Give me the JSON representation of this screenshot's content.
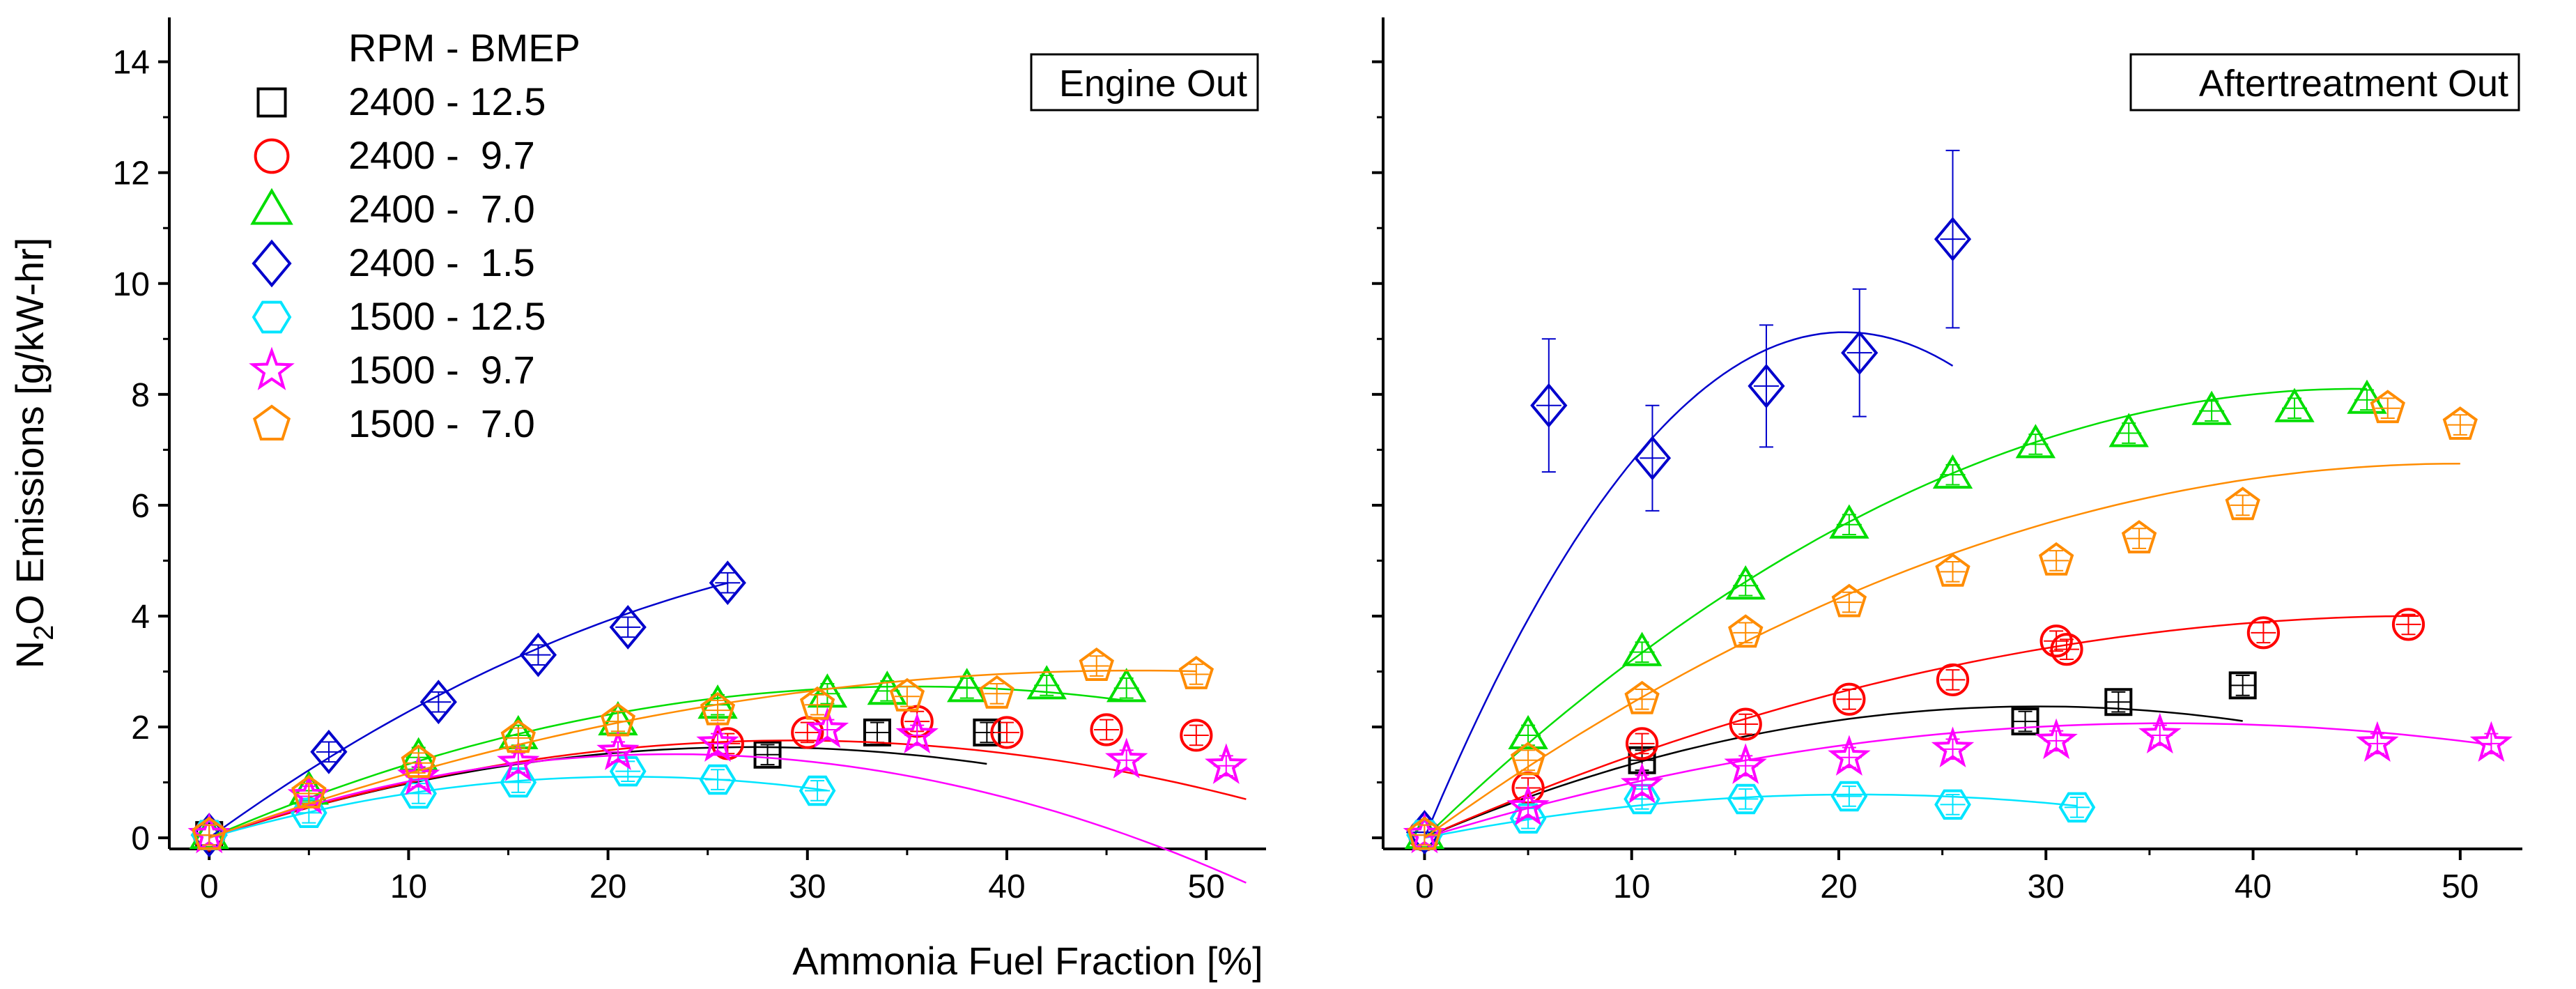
{
  "chart_data": {
    "type": "scatter",
    "y_axis_title": "N2O Emissions [g/kW-hr]",
    "y_axis_title_parts": {
      "before": "N",
      "subscript": "2",
      "after": "O Emissions [g/kW-hr]"
    },
    "x_axis_title": "Ammonia Fuel Fraction [%]",
    "xlim": [
      -2,
      53
    ],
    "ylim": [
      -0.2,
      14.8
    ],
    "x_ticks": [
      0,
      10,
      20,
      30,
      40,
      50
    ],
    "y_ticks": [
      0,
      2,
      4,
      6,
      8,
      10,
      12,
      14
    ],
    "x_tick_labels": [
      "0",
      "10",
      "20",
      "30",
      "40",
      "50"
    ],
    "y_tick_labels": [
      "0",
      "2",
      "4",
      "6",
      "8",
      "10",
      "12",
      "14"
    ],
    "legend_title": "RPM - BMEP",
    "legend_placement": "top-left",
    "series": [
      {
        "name": "2400 - 12.5",
        "color": "#000000",
        "marker": "square"
      },
      {
        "name": "2400 -  9.7",
        "color": "#ff0000",
        "marker": "circle"
      },
      {
        "name": "2400 -  7.0",
        "color": "#00dd00",
        "marker": "triangle"
      },
      {
        "name": "2400 -  1.5",
        "color": "#0000cc",
        "marker": "diamond"
      },
      {
        "name": "1500 - 12.5",
        "color": "#00e5ff",
        "marker": "hexagon"
      },
      {
        "name": "1500 -  9.7",
        "color": "#ff00ff",
        "marker": "star"
      },
      {
        "name": "1500 -  7.0",
        "color": "#ff8c00",
        "marker": "pentagon"
      }
    ],
    "panels": [
      {
        "title": "Engine Out",
        "data": [
          {
            "x": [
              0,
              28,
              33.5,
              39
            ],
            "y": [
              0.05,
              1.5,
              1.9,
              1.9
            ],
            "fit": {
              "coef": [
                0,
                0.12,
                -0.0022
              ],
              "xmax": 39
            }
          },
          {
            "x": [
              0,
              26,
              30,
              35.5,
              40,
              45,
              49.5
            ],
            "y": [
              0.05,
              1.7,
              1.9,
              2.1,
              1.9,
              1.95,
              1.85
            ],
            "fit": {
              "coef": [
                0,
                0.12,
                -0.00205
              ],
              "xmax": 52
            }
          },
          {
            "x": [
              0,
              5,
              10.5,
              15.5,
              20.5,
              25.5,
              31,
              34,
              38,
              42,
              46
            ],
            "y": [
              0.05,
              0.85,
              1.45,
              1.85,
              2.1,
              2.4,
              2.6,
              2.65,
              2.7,
              2.75,
              2.7
            ],
            "fit": {
              "coef": [
                0,
                0.155,
                -0.0022
              ],
              "xmax": 46
            }
          },
          {
            "x": [
              0,
              6,
              11.5,
              16.5,
              21,
              26
            ],
            "y": [
              0.05,
              1.55,
              2.45,
              3.3,
              3.8,
              4.6
            ],
            "fit": {
              "coef": [
                0,
                0.26,
                -0.0032
              ],
              "xmax": 26
            }
          },
          {
            "x": [
              0,
              5,
              10.5,
              15.5,
              21,
              25.5,
              30.5
            ],
            "y": [
              0.05,
              0.45,
              0.8,
              1.0,
              1.2,
              1.05,
              0.85
            ],
            "fit": {
              "coef": [
                0,
                0.105,
                -0.0025
              ],
              "xmax": 31
            }
          },
          {
            "x": [
              0,
              5,
              10.5,
              15.5,
              20.5,
              25.5,
              31,
              35.5,
              46,
              51
            ],
            "y": [
              0.05,
              0.75,
              1.1,
              1.35,
              1.55,
              1.7,
              1.95,
              1.85,
              1.4,
              1.3
            ],
            "fit": {
              "coef": [
                0,
                0.13,
                -0.0028
              ],
              "xmax": 52
            }
          },
          {
            "x": [
              0,
              5,
              10.5,
              15.5,
              20.5,
              25.5,
              30.5,
              35,
              39.5,
              44.5,
              49.5
            ],
            "y": [
              0.05,
              0.8,
              1.35,
              1.8,
              2.1,
              2.3,
              2.4,
              2.55,
              2.6,
              3.1,
              2.95
            ],
            "fit": {
              "coef": [
                0,
                0.13,
                -0.0014
              ],
              "xmax": 49.5
            }
          }
        ]
      },
      {
        "title": "Aftertreatment Out",
        "data": [
          {
            "x": [
              10.5,
              29,
              33.5,
              39.5
            ],
            "y": [
              1.4,
              2.1,
              2.45,
              2.75
            ],
            "fit": {
              "coef": [
                0,
                0.16,
                -0.0027
              ],
              "xmax": 39.5
            }
          },
          {
            "x": [
              0,
              5,
              10.5,
              15.5,
              20.5,
              25.5,
              30.5,
              31,
              40.5,
              47.5
            ],
            "y": [
              0.05,
              0.9,
              1.7,
              2.05,
              2.5,
              2.85,
              3.55,
              3.4,
              3.7,
              3.85
            ],
            "fit": {
              "coef": [
                0,
                0.165,
                -0.0017
              ],
              "xmax": 48
            }
          },
          {
            "x": [
              0,
              5,
              10.5,
              15.5,
              20.5,
              25.5,
              29.5,
              34,
              38,
              42,
              45.5
            ],
            "y": [
              0.05,
              1.85,
              3.35,
              4.55,
              5.65,
              6.55,
              7.1,
              7.3,
              7.7,
              7.75,
              7.9
            ],
            "fit": {
              "coef": [
                0,
                0.36,
                -0.004
              ],
              "xmax": 45.5
            }
          },
          {
            "x": [
              0,
              6,
              11,
              16.5,
              21,
              25.5
            ],
            "y": [
              0.1,
              7.8,
              6.85,
              8.15,
              8.75,
              10.8
            ],
            "err": [
              0,
              1.2,
              0.95,
              1.1,
              1.15,
              1.6
            ],
            "fit": {
              "coef": [
                0,
                0.9,
                -0.0222
              ],
              "xmax": 25.5
            }
          },
          {
            "x": [
              0,
              5,
              10.5,
              15.5,
              20.5,
              25.5,
              31.5
            ],
            "y": [
              0.05,
              0.35,
              0.7,
              0.7,
              0.75,
              0.6,
              0.55
            ],
            "fit": {
              "coef": [
                0,
                0.075,
                -0.0018
              ],
              "xmax": 31.5
            }
          },
          {
            "x": [
              0,
              5,
              10.5,
              15.5,
              20.5,
              25.5,
              30.5,
              35.5,
              46,
              51.5
            ],
            "y": [
              0.05,
              0.55,
              0.95,
              1.3,
              1.45,
              1.6,
              1.75,
              1.85,
              1.7,
              1.7
            ],
            "fit": {
              "coef": [
                0,
                0.115,
                -0.0016
              ],
              "xmax": 51.5
            }
          },
          {
            "x": [
              0,
              5,
              10.5,
              15.5,
              20.5,
              25.5,
              30.5,
              34.5,
              39.5,
              46.5,
              50
            ],
            "y": [
              0.05,
              1.4,
              2.5,
              3.7,
              4.25,
              4.8,
              5.0,
              5.4,
              6.0,
              7.75,
              7.45
            ],
            "fit": {
              "coef": [
                0,
                0.27,
                -0.0027
              ],
              "xmax": 50
            }
          }
        ]
      }
    ]
  }
}
